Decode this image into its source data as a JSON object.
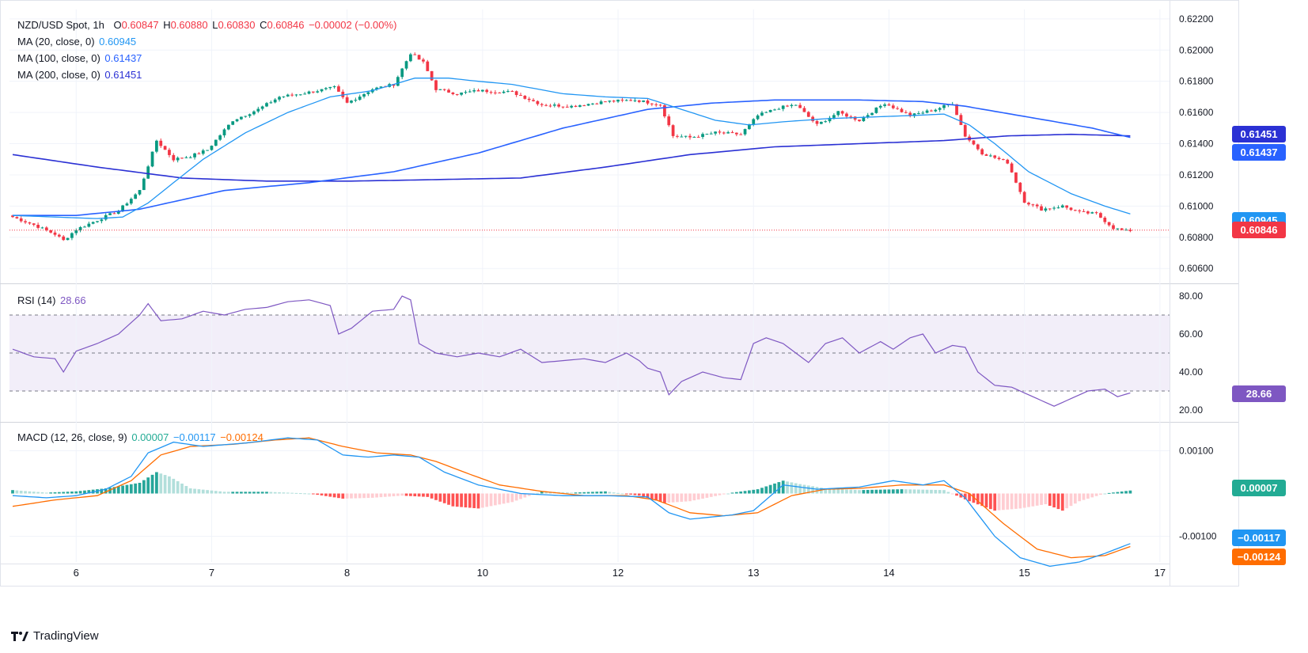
{
  "brand": "TradingView",
  "legend": {
    "symbol": "NZD/USD Spot, 1h",
    "o_label": "O",
    "o": "0.60847",
    "h_label": "H",
    "h": "0.60880",
    "l_label": "L",
    "l": "0.60830",
    "c_label": "C",
    "c": "0.60846",
    "change": "−0.00002 (−0.00%)",
    "ma20": {
      "label": "MA (20, close, 0)",
      "value": "0.60945"
    },
    "ma100": {
      "label": "MA (100, close, 0)",
      "value": "0.61437"
    },
    "ma200": {
      "label": "MA (200, close, 0)",
      "value": "0.61451"
    },
    "rsi": {
      "label": "RSI (14)",
      "value": "28.66"
    },
    "macd": {
      "label": "MACD (12, 26, close, 9)",
      "hist": "0.00007",
      "macd": "−0.00117",
      "signal": "−0.00124"
    }
  },
  "price_tags": [
    {
      "text": "0.61451",
      "value": 0.61451,
      "color": "#2b31d4"
    },
    {
      "text": "0.61437",
      "value": 0.61437,
      "color": "#2962ff"
    },
    {
      "text": "0.60945",
      "value": 0.60945,
      "color": "#2196f3"
    },
    {
      "text": "0.60846",
      "value": 0.60846,
      "color": "#f23645"
    }
  ],
  "rsi_tag": {
    "text": "28.66",
    "value": 28.66,
    "color": "#7e57c2"
  },
  "macd_tags": [
    {
      "text": "0.00007",
      "value": 7e-05,
      "color": "#22ab94"
    },
    {
      "text": "−0.00117",
      "value": -0.00117,
      "color": "#2196f3"
    },
    {
      "text": "−0.00124",
      "value": -0.00124,
      "color": "#ff6d00"
    }
  ],
  "chart_data": {
    "type": "candlestick",
    "title": "NZD/USD Spot, 1h",
    "x_ticks": [
      "6",
      "7",
      "8",
      "10",
      "12",
      "13",
      "14",
      "15",
      "17"
    ],
    "x_tick_bars": [
      15,
      47,
      79,
      111,
      143,
      175,
      207,
      239,
      271
    ],
    "price_ticks": [
      "0.62200",
      "0.62000",
      "0.61800",
      "0.61600",
      "0.61400",
      "0.61200",
      "0.61000",
      "0.60800",
      "0.60600"
    ],
    "price_tick_values": [
      0.622,
      0.62,
      0.618,
      0.616,
      0.614,
      0.612,
      0.61,
      0.608,
      0.606
    ],
    "price_range": [
      0.6052,
      0.6226
    ],
    "rsi_ticks": [
      "80.00",
      "60.00",
      "40.00",
      "20.00"
    ],
    "rsi_tick_values": [
      80,
      60,
      40,
      20
    ],
    "rsi_range": [
      15,
      85
    ],
    "rsi_band": [
      30,
      50,
      70
    ],
    "macd_ticks": [
      "0.00100",
      "-0.00100"
    ],
    "macd_tick_values": [
      0.001,
      -0.001
    ],
    "macd_range": [
      -0.0016,
      0.0016
    ],
    "close_anchors": [
      [
        0,
        0.6093
      ],
      [
        5,
        0.6088
      ],
      [
        10,
        0.6082
      ],
      [
        12,
        0.6078
      ],
      [
        15,
        0.6085
      ],
      [
        20,
        0.6091
      ],
      [
        25,
        0.6097
      ],
      [
        30,
        0.611
      ],
      [
        34,
        0.6142
      ],
      [
        38,
        0.613
      ],
      [
        42,
        0.6132
      ],
      [
        46,
        0.6136
      ],
      [
        52,
        0.6155
      ],
      [
        58,
        0.6162
      ],
      [
        63,
        0.617
      ],
      [
        68,
        0.6172
      ],
      [
        72,
        0.6174
      ],
      [
        76,
        0.6176
      ],
      [
        79,
        0.6166
      ],
      [
        85,
        0.6175
      ],
      [
        90,
        0.6178
      ],
      [
        94,
        0.6198
      ],
      [
        97,
        0.6192
      ],
      [
        100,
        0.6175
      ],
      [
        105,
        0.6172
      ],
      [
        110,
        0.6174
      ],
      [
        118,
        0.6173
      ],
      [
        125,
        0.6165
      ],
      [
        132,
        0.6164
      ],
      [
        140,
        0.6167
      ],
      [
        147,
        0.6168
      ],
      [
        153,
        0.6165
      ],
      [
        156,
        0.6145
      ],
      [
        160,
        0.6144
      ],
      [
        166,
        0.6147
      ],
      [
        172,
        0.6146
      ],
      [
        176,
        0.6158
      ],
      [
        181,
        0.6163
      ],
      [
        185,
        0.6165
      ],
      [
        190,
        0.6152
      ],
      [
        195,
        0.616
      ],
      [
        200,
        0.6155
      ],
      [
        206,
        0.6166
      ],
      [
        212,
        0.6158
      ],
      [
        218,
        0.6162
      ],
      [
        222,
        0.6166
      ],
      [
        225,
        0.6145
      ],
      [
        229,
        0.6134
      ],
      [
        235,
        0.6128
      ],
      [
        239,
        0.6103
      ],
      [
        243,
        0.6098
      ],
      [
        248,
        0.61
      ],
      [
        252,
        0.6096
      ],
      [
        256,
        0.6095
      ],
      [
        260,
        0.6086
      ],
      [
        263,
        0.6084
      ]
    ],
    "ma20_anchors": [
      [
        0,
        0.6094
      ],
      [
        10,
        0.6093
      ],
      [
        20,
        0.6092
      ],
      [
        26,
        0.6093
      ],
      [
        32,
        0.6102
      ],
      [
        38,
        0.6115
      ],
      [
        45,
        0.613
      ],
      [
        55,
        0.6147
      ],
      [
        65,
        0.616
      ],
      [
        75,
        0.617
      ],
      [
        85,
        0.6174
      ],
      [
        95,
        0.6182
      ],
      [
        103,
        0.6182
      ],
      [
        110,
        0.618
      ],
      [
        118,
        0.6178
      ],
      [
        130,
        0.6172
      ],
      [
        140,
        0.617
      ],
      [
        150,
        0.6169
      ],
      [
        158,
        0.6162
      ],
      [
        166,
        0.6155
      ],
      [
        174,
        0.6152
      ],
      [
        182,
        0.6154
      ],
      [
        192,
        0.6156
      ],
      [
        202,
        0.6157
      ],
      [
        212,
        0.6158
      ],
      [
        220,
        0.6159
      ],
      [
        226,
        0.6152
      ],
      [
        232,
        0.614
      ],
      [
        240,
        0.6122
      ],
      [
        250,
        0.6108
      ],
      [
        258,
        0.61
      ],
      [
        264,
        0.6095
      ]
    ],
    "ma100_anchors": [
      [
        0,
        0.6094
      ],
      [
        15,
        0.6094
      ],
      [
        30,
        0.6098
      ],
      [
        50,
        0.611
      ],
      [
        70,
        0.6115
      ],
      [
        90,
        0.6122
      ],
      [
        110,
        0.6134
      ],
      [
        130,
        0.615
      ],
      [
        150,
        0.6162
      ],
      [
        165,
        0.6166
      ],
      [
        180,
        0.6168
      ],
      [
        200,
        0.6168
      ],
      [
        215,
        0.6167
      ],
      [
        225,
        0.6164
      ],
      [
        240,
        0.6157
      ],
      [
        255,
        0.615
      ],
      [
        264,
        0.6144
      ]
    ],
    "ma200_anchors": [
      [
        0,
        0.6133
      ],
      [
        20,
        0.6125
      ],
      [
        40,
        0.6118
      ],
      [
        60,
        0.6116
      ],
      [
        80,
        0.6116
      ],
      [
        100,
        0.6117
      ],
      [
        120,
        0.6118
      ],
      [
        140,
        0.6125
      ],
      [
        160,
        0.6133
      ],
      [
        180,
        0.6138
      ],
      [
        200,
        0.614
      ],
      [
        220,
        0.6142
      ],
      [
        235,
        0.6145
      ],
      [
        250,
        0.6146
      ],
      [
        264,
        0.6145
      ]
    ],
    "rsi_anchors": [
      [
        0,
        52
      ],
      [
        5,
        48
      ],
      [
        10,
        47
      ],
      [
        12,
        40
      ],
      [
        15,
        51
      ],
      [
        20,
        55
      ],
      [
        25,
        60
      ],
      [
        30,
        70
      ],
      [
        32,
        76
      ],
      [
        35,
        67
      ],
      [
        40,
        68
      ],
      [
        45,
        72
      ],
      [
        50,
        70
      ],
      [
        55,
        73
      ],
      [
        60,
        74
      ],
      [
        65,
        77
      ],
      [
        70,
        78
      ],
      [
        75,
        75
      ],
      [
        77,
        60
      ],
      [
        80,
        63
      ],
      [
        85,
        72
      ],
      [
        90,
        73
      ],
      [
        92,
        80
      ],
      [
        94,
        78
      ],
      [
        96,
        55
      ],
      [
        100,
        50
      ],
      [
        105,
        48
      ],
      [
        110,
        50
      ],
      [
        115,
        48
      ],
      [
        120,
        52
      ],
      [
        125,
        45
      ],
      [
        130,
        46
      ],
      [
        135,
        47
      ],
      [
        140,
        45
      ],
      [
        145,
        50
      ],
      [
        148,
        46
      ],
      [
        150,
        42
      ],
      [
        153,
        40
      ],
      [
        155,
        28
      ],
      [
        158,
        35
      ],
      [
        163,
        40
      ],
      [
        168,
        37
      ],
      [
        172,
        36
      ],
      [
        175,
        55
      ],
      [
        178,
        58
      ],
      [
        182,
        55
      ],
      [
        185,
        50
      ],
      [
        188,
        45
      ],
      [
        192,
        55
      ],
      [
        196,
        58
      ],
      [
        200,
        50
      ],
      [
        205,
        56
      ],
      [
        208,
        52
      ],
      [
        212,
        58
      ],
      [
        215,
        60
      ],
      [
        218,
        50
      ],
      [
        222,
        54
      ],
      [
        225,
        53
      ],
      [
        228,
        40
      ],
      [
        232,
        33
      ],
      [
        236,
        32
      ],
      [
        240,
        28
      ],
      [
        243,
        25
      ],
      [
        246,
        22
      ],
      [
        250,
        26
      ],
      [
        254,
        30
      ],
      [
        258,
        31
      ],
      [
        261,
        27
      ],
      [
        264,
        29
      ]
    ],
    "macd_anchors": [
      [
        0,
        -5e-05
      ],
      [
        8,
        -0.0001
      ],
      [
        15,
        -5e-05
      ],
      [
        22,
        0.0001
      ],
      [
        28,
        0.0004
      ],
      [
        32,
        0.00095
      ],
      [
        38,
        0.0012
      ],
      [
        45,
        0.0011
      ],
      [
        55,
        0.00118
      ],
      [
        65,
        0.0013
      ],
      [
        72,
        0.00125
      ],
      [
        78,
        0.0009
      ],
      [
        84,
        0.00085
      ],
      [
        90,
        0.0009
      ],
      [
        96,
        0.00085
      ],
      [
        102,
        0.0005
      ],
      [
        110,
        0.0002
      ],
      [
        120,
        0.0
      ],
      [
        130,
        -5e-05
      ],
      [
        140,
        -5e-05
      ],
      [
        150,
        -8e-05
      ],
      [
        155,
        -0.00045
      ],
      [
        160,
        -0.0006
      ],
      [
        170,
        -0.0005
      ],
      [
        175,
        -0.0004
      ],
      [
        182,
        0.0002
      ],
      [
        190,
        0.0001
      ],
      [
        200,
        0.00015
      ],
      [
        208,
        0.0003
      ],
      [
        215,
        0.0002
      ],
      [
        220,
        0.0003
      ],
      [
        225,
        -0.0001
      ],
      [
        232,
        -0.001
      ],
      [
        238,
        -0.0015
      ],
      [
        245,
        -0.0017
      ],
      [
        252,
        -0.0016
      ],
      [
        258,
        -0.0014
      ],
      [
        264,
        -0.00117
      ]
    ],
    "signal_anchors": [
      [
        0,
        -0.0003
      ],
      [
        10,
        -0.00015
      ],
      [
        20,
        -5e-05
      ],
      [
        28,
        0.0003
      ],
      [
        35,
        0.0009
      ],
      [
        42,
        0.0011
      ],
      [
        52,
        0.00115
      ],
      [
        62,
        0.00125
      ],
      [
        70,
        0.0013
      ],
      [
        78,
        0.0011
      ],
      [
        86,
        0.00095
      ],
      [
        94,
        0.0009
      ],
      [
        100,
        0.00075
      ],
      [
        108,
        0.00045
      ],
      [
        115,
        0.0002
      ],
      [
        125,
        5e-05
      ],
      [
        135,
        -5e-05
      ],
      [
        145,
        -5e-05
      ],
      [
        152,
        -0.00015
      ],
      [
        160,
        -0.00045
      ],
      [
        168,
        -0.00052
      ],
      [
        176,
        -0.00045
      ],
      [
        184,
        -5e-05
      ],
      [
        192,
        0.0001
      ],
      [
        200,
        0.00012
      ],
      [
        210,
        0.0002
      ],
      [
        220,
        0.0002
      ],
      [
        226,
        0.0
      ],
      [
        234,
        -0.0007
      ],
      [
        242,
        -0.0013
      ],
      [
        250,
        -0.0015
      ],
      [
        258,
        -0.00145
      ],
      [
        264,
        -0.00124
      ]
    ],
    "hist_anchors": [
      [
        0,
        8e-05
      ],
      [
        8,
        2e-05
      ],
      [
        15,
        5e-05
      ],
      [
        22,
        0.00012
      ],
      [
        30,
        0.00025
      ],
      [
        34,
        0.0005
      ],
      [
        37,
        0.0004
      ],
      [
        42,
        0.00012
      ],
      [
        50,
        4e-05
      ],
      [
        60,
        4e-05
      ],
      [
        70,
        0.0
      ],
      [
        78,
        -0.00012
      ],
      [
        85,
        -0.0001
      ],
      [
        92,
        -5e-05
      ],
      [
        98,
        -8e-05
      ],
      [
        104,
        -0.0003
      ],
      [
        110,
        -0.00035
      ],
      [
        118,
        -0.0002
      ],
      [
        125,
        5e-05
      ],
      [
        132,
        2e-05
      ],
      [
        140,
        5e-05
      ],
      [
        148,
        -5e-05
      ],
      [
        154,
        -0.00022
      ],
      [
        160,
        -0.00018
      ],
      [
        170,
        2e-05
      ],
      [
        176,
        0.0001
      ],
      [
        182,
        0.0003
      ],
      [
        186,
        0.00022
      ],
      [
        192,
        0.00012
      ],
      [
        200,
        8e-05
      ],
      [
        210,
        0.0001
      ],
      [
        220,
        8e-05
      ],
      [
        226,
        -0.00018
      ],
      [
        232,
        -0.0004
      ],
      [
        238,
        -0.00035
      ],
      [
        244,
        -0.00025
      ],
      [
        248,
        -0.0004
      ],
      [
        252,
        -0.00018
      ],
      [
        258,
        0.0
      ],
      [
        264,
        7e-05
      ]
    ]
  }
}
